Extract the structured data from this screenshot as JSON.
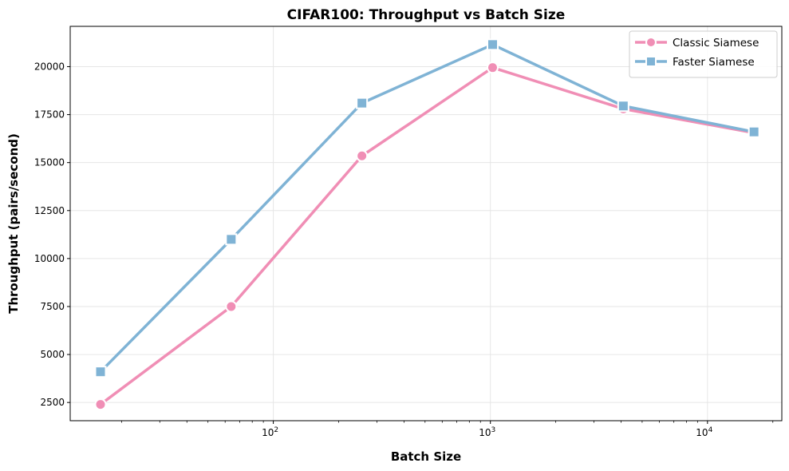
{
  "chart_data": {
    "type": "line",
    "title": "CIFAR100: Throughput vs Batch Size",
    "xlabel": "Batch Size",
    "ylabel": "Throughput (pairs/second)",
    "xscale": "log",
    "xlim": [
      11.6,
      22000
    ],
    "ylim": [
      1550,
      22100
    ],
    "x": [
      16,
      64,
      256,
      1024,
      4096,
      16384
    ],
    "x_ticks": [
      {
        "value": 100,
        "base": "10",
        "exp": "2"
      },
      {
        "value": 1000,
        "base": "10",
        "exp": "3"
      },
      {
        "value": 10000,
        "base": "10",
        "exp": "4"
      }
    ],
    "y_ticks": [
      2500,
      5000,
      7500,
      10000,
      12500,
      15000,
      17500,
      20000
    ],
    "grid": true,
    "legend_position": "top-right",
    "series": [
      {
        "name": "Classic Siamese",
        "color": "#f08eb5",
        "marker": "circle",
        "values": [
          2400,
          7500,
          15350,
          19950,
          17800,
          16550
        ]
      },
      {
        "name": "Faster Siamese",
        "color": "#7fb3d5",
        "marker": "square",
        "values": [
          4100,
          11000,
          18100,
          21150,
          17950,
          16600
        ]
      }
    ]
  }
}
